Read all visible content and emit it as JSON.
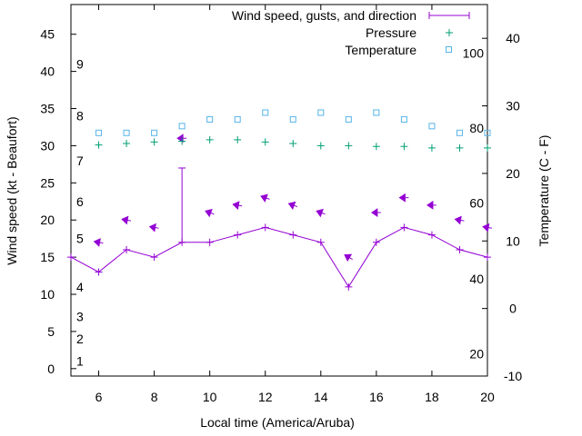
{
  "chart_data": {
    "type": "line",
    "xlabel": "Local time (America/Aruba)",
    "ylabel_left": "Wind speed (kt - Beaufort)",
    "ylabel_right": "Temperature (C - F)",
    "xlim": [
      5,
      20
    ],
    "ylim_left": [
      -1,
      49
    ],
    "ylim_right": [
      -10,
      45
    ],
    "x_ticks": [
      "6",
      "8",
      "10",
      "12",
      "14",
      "16",
      "18",
      "20"
    ],
    "y_left_ticks": [
      "0",
      "5",
      "10",
      "15",
      "20",
      "25",
      "30",
      "35",
      "40",
      "45"
    ],
    "beaufort_ticks": [
      {
        "label": "1",
        "kt": 1.0
      },
      {
        "label": "2",
        "kt": 4.0
      },
      {
        "label": "3",
        "kt": 7.0
      },
      {
        "label": "4",
        "kt": 11.0
      },
      {
        "label": "5",
        "kt": 17.5
      },
      {
        "label": "6",
        "kt": 22.5
      },
      {
        "label": "7",
        "kt": 28.0
      },
      {
        "label": "8",
        "kt": 34.0
      },
      {
        "label": "9",
        "kt": 41.0
      }
    ],
    "y_right_ticks_c": [
      "-10",
      "0",
      "10",
      "20",
      "30",
      "40"
    ],
    "fahrenheit_ticks": [
      {
        "label": "20",
        "c": -6.7
      },
      {
        "label": "40",
        "c": 4.4
      },
      {
        "label": "60",
        "c": 15.6
      },
      {
        "label": "80",
        "c": 26.7
      },
      {
        "label": "100",
        "c": 37.8
      }
    ],
    "legend": {
      "position": "top-right",
      "entries": [
        "Wind speed, gusts, and direction",
        "Pressure",
        "Temperature"
      ]
    },
    "series": [
      {
        "name": "Wind speed, gusts, and direction",
        "color": "#9400d3",
        "x": [
          5,
          6,
          7,
          8,
          9,
          10,
          11,
          12,
          13,
          14,
          15,
          16,
          17,
          18,
          19,
          20
        ],
        "values": [
          15,
          13,
          16,
          15,
          17,
          17,
          18,
          19,
          18,
          17,
          11,
          17,
          19,
          18,
          16,
          15
        ]
      },
      {
        "name": "Gust",
        "color": "#9400d3",
        "x": [
          9
        ],
        "values": [
          27
        ]
      },
      {
        "name": "Direction arrows",
        "color": "#9400d3",
        "points": [
          {
            "x": 6,
            "y": 17.0,
            "dir": 100
          },
          {
            "x": 7,
            "y": 20.0,
            "dir": 100
          },
          {
            "x": 8,
            "y": 19.0,
            "dir": 100
          },
          {
            "x": 9,
            "y": 31.0,
            "dir": 90
          },
          {
            "x": 10,
            "y": 21.0,
            "dir": 110
          },
          {
            "x": 11,
            "y": 22.0,
            "dir": 100
          },
          {
            "x": 12,
            "y": 23.0,
            "dir": 110
          },
          {
            "x": 13,
            "y": 22.0,
            "dir": 110
          },
          {
            "x": 14,
            "y": 21.0,
            "dir": 110
          },
          {
            "x": 15,
            "y": 15.0,
            "dir": 120
          },
          {
            "x": 16,
            "y": 21.0,
            "dir": 90
          },
          {
            "x": 17,
            "y": 23.0,
            "dir": 90
          },
          {
            "x": 18,
            "y": 22.0,
            "dir": 90
          },
          {
            "x": 19,
            "y": 20.0,
            "dir": 100
          },
          {
            "x": 20,
            "y": 19.0,
            "dir": 100
          }
        ]
      },
      {
        "name": "Pressure",
        "color": "#009e73",
        "x": [
          6,
          7,
          8,
          9,
          10,
          11,
          12,
          13,
          14,
          15,
          16,
          17,
          18,
          19,
          20
        ],
        "values": [
          30.1,
          30.3,
          30.5,
          30.6,
          30.8,
          30.8,
          30.5,
          30.3,
          30.0,
          30.0,
          29.9,
          29.9,
          29.7,
          29.7,
          29.7
        ]
      },
      {
        "name": "Temperature",
        "color": "#56b4e9",
        "x": [
          6,
          7,
          8,
          9,
          10,
          11,
          12,
          13,
          14,
          15,
          16,
          17,
          18,
          19,
          20
        ],
        "values": [
          26,
          26,
          26,
          27,
          28,
          28,
          29,
          28,
          29,
          28,
          29,
          28,
          27,
          26,
          26
        ]
      }
    ]
  }
}
